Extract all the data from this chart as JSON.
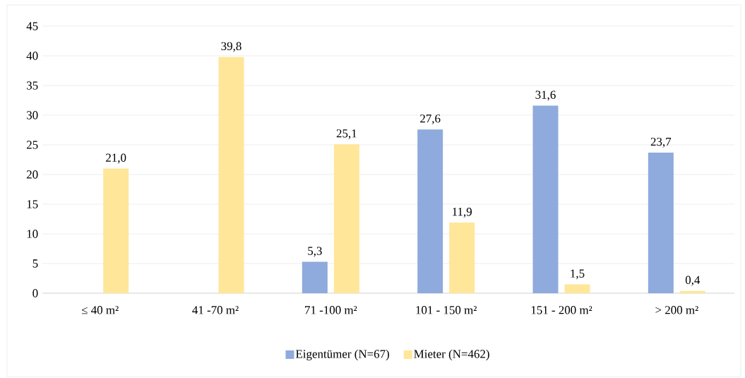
{
  "chart_data": {
    "type": "bar",
    "categories": [
      "≤ 40 m²",
      "41 -70 m²",
      "71 -100 m²",
      "101 - 150 m²",
      "151 - 200 m²",
      "> 200 m²"
    ],
    "series": [
      {
        "name": "Eigentümer (N=67)",
        "color": "#8faadc",
        "values": [
          null,
          null,
          5.3,
          27.6,
          31.6,
          23.7
        ],
        "value_labels": [
          null,
          null,
          "5,3",
          "27,6",
          "31,6",
          "23,7"
        ]
      },
      {
        "name": "Mieter (N=462)",
        "color": "#ffe699",
        "values": [
          21.0,
          39.8,
          25.1,
          11.9,
          1.5,
          0.4
        ],
        "value_labels": [
          "21,0",
          "39,8",
          "25,1",
          "11,9",
          "1,5",
          "0,4"
        ]
      }
    ],
    "ylim": [
      0,
      45
    ],
    "yticks": [
      0,
      5,
      10,
      15,
      20,
      25,
      30,
      35,
      40,
      45
    ],
    "grid": "y",
    "legend": "bottom"
  }
}
